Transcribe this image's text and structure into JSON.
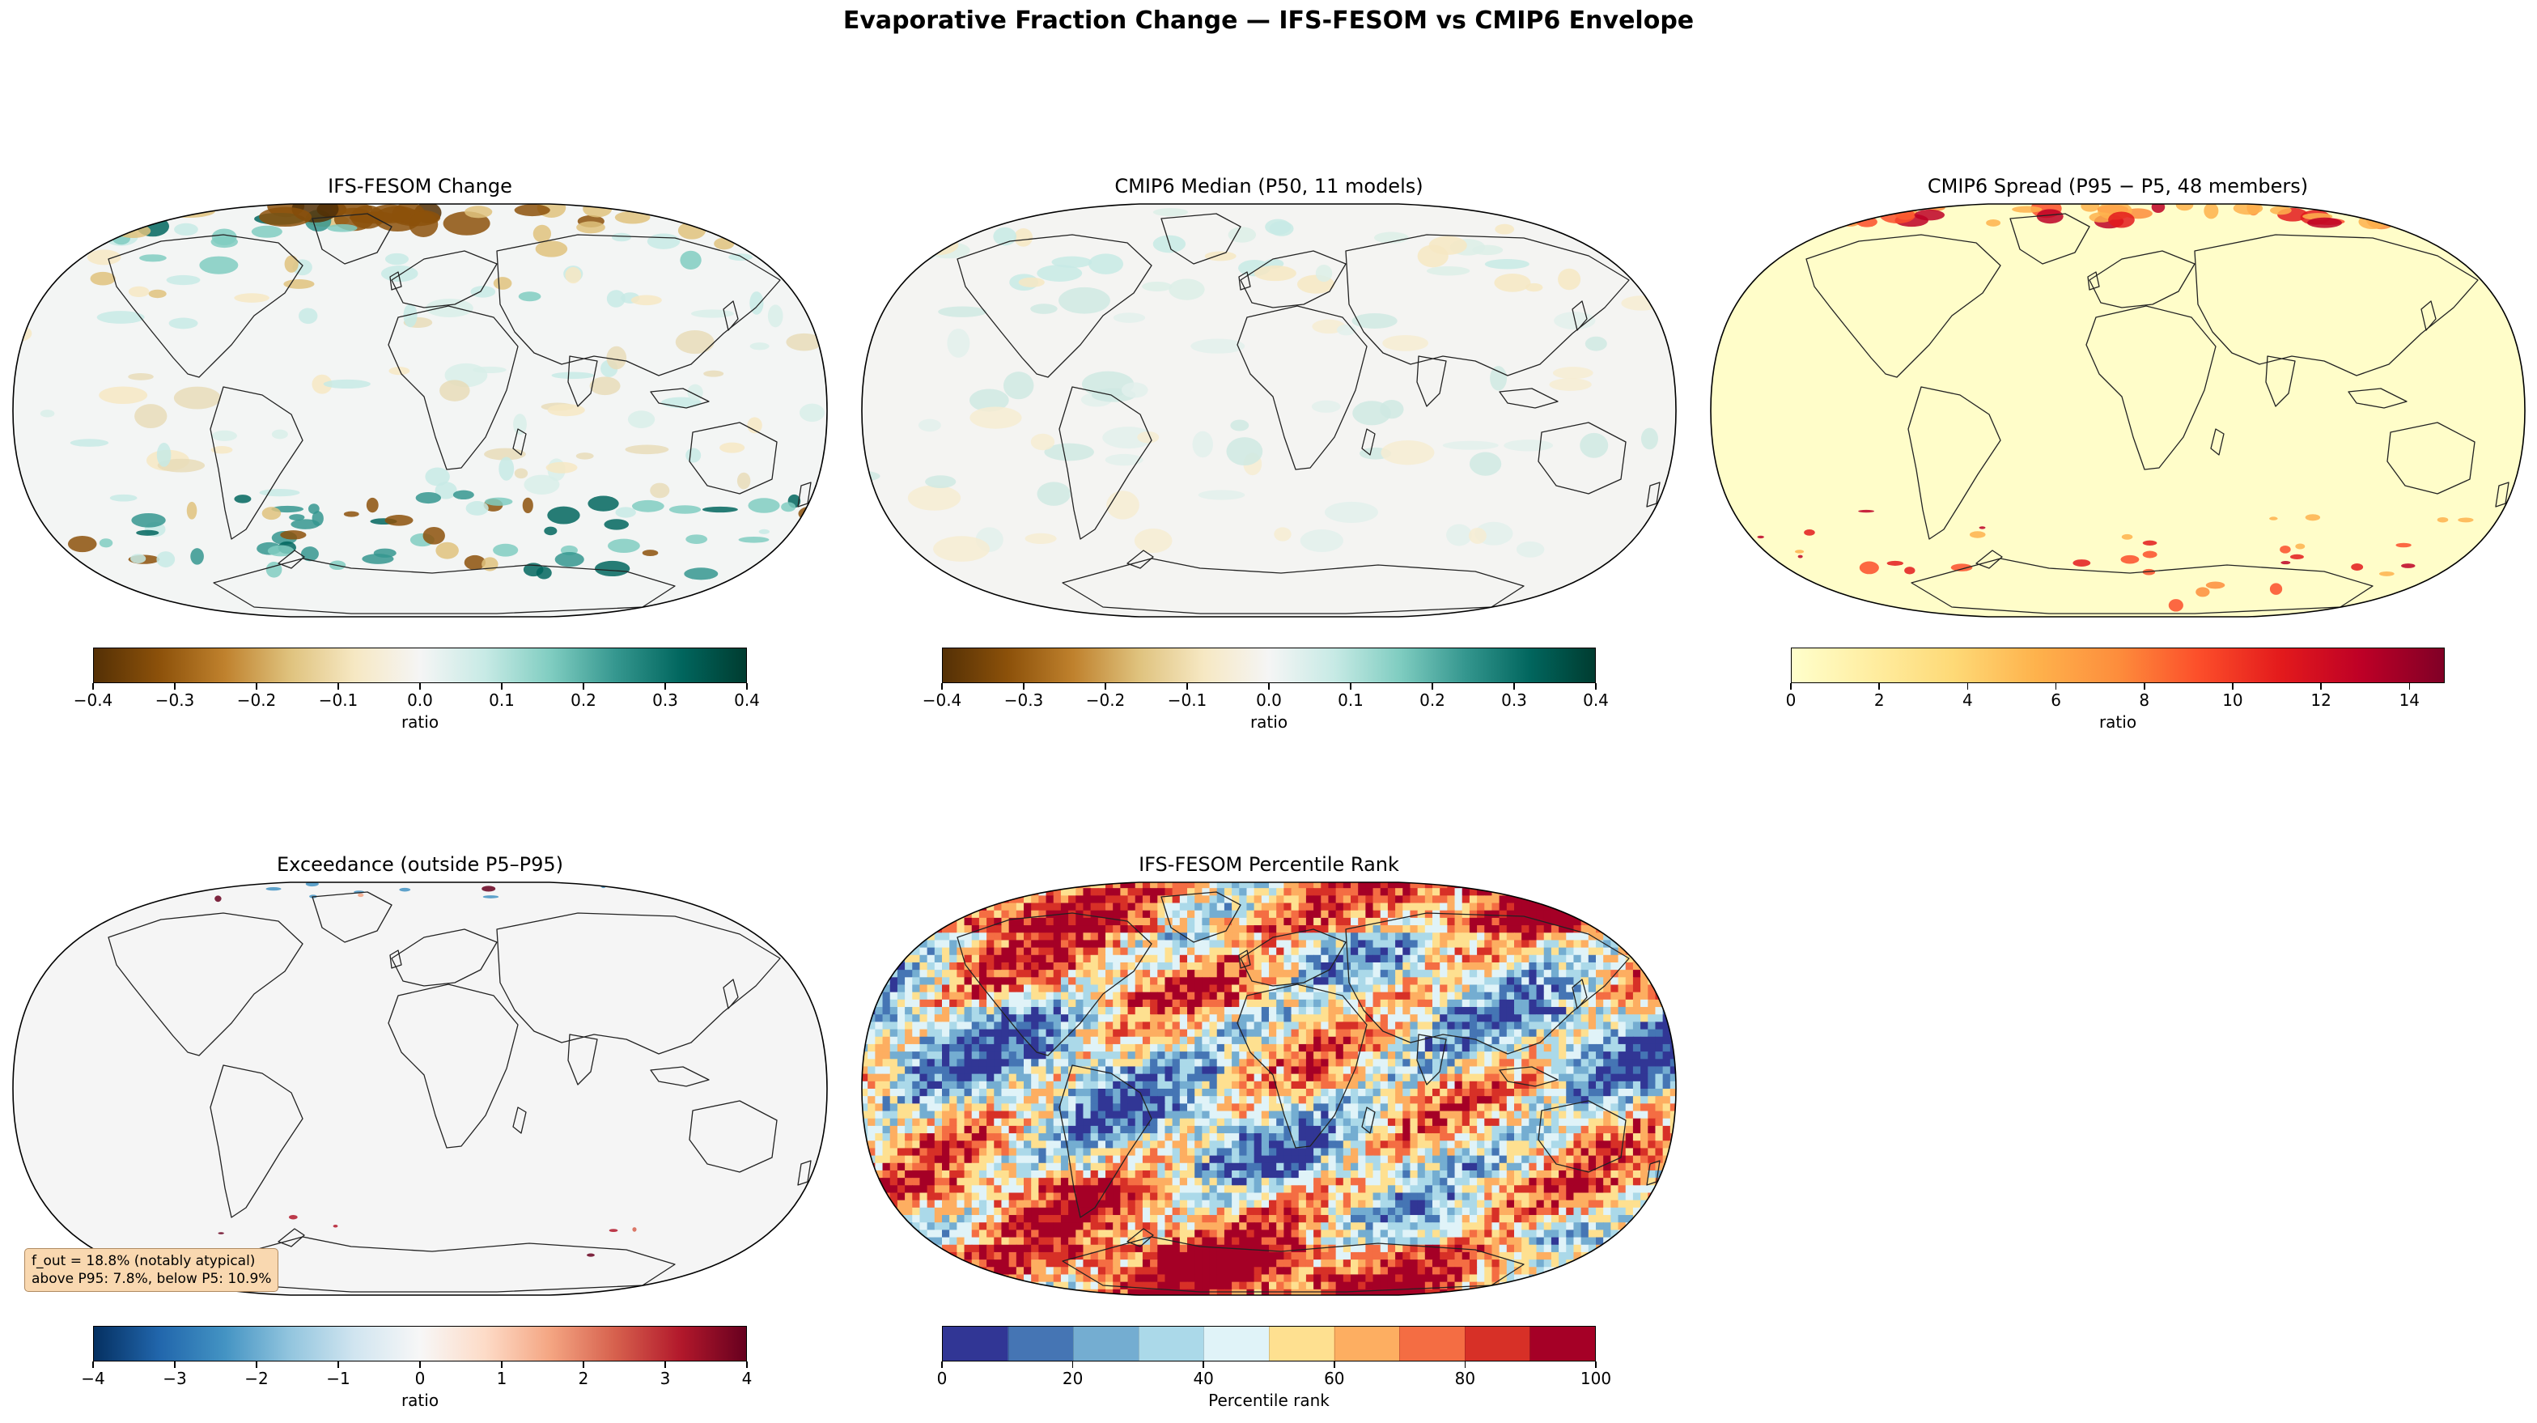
{
  "figure_title": "Evaporative Fraction Change — IFS-FESOM vs CMIP6 Envelope",
  "colors": {
    "brbg": [
      "#543005",
      "#8c510a",
      "#bf812d",
      "#dfc27d",
      "#f6e8c3",
      "#f5f5f5",
      "#c7eae5",
      "#80cdc1",
      "#35978f",
      "#01665e",
      "#003c30"
    ],
    "ylorrd": [
      "#ffffcc",
      "#ffeda0",
      "#fed976",
      "#feb24c",
      "#fd8d3c",
      "#fc4e2a",
      "#e31a1c",
      "#bd0026",
      "#800026"
    ],
    "rdbu_r": [
      "#053061",
      "#2166ac",
      "#4393c3",
      "#92c5de",
      "#d1e5f0",
      "#f7f7f7",
      "#fddbc7",
      "#f4a582",
      "#d6604d",
      "#b2182b",
      "#67001f"
    ],
    "rdylbu_r": [
      "#313695",
      "#4575b4",
      "#74add1",
      "#abd9e9",
      "#e0f3f8",
      "#fee090",
      "#fdae61",
      "#f46d43",
      "#d73027",
      "#a50026"
    ],
    "coastline": "#222222",
    "annotation_bg": "#f9d8b0"
  },
  "chart_data": [
    {
      "type": "heatmap",
      "title": "IFS-FESOM Change",
      "colormap": "brbg",
      "colorbar": {
        "range": [
          -0.4,
          0.4
        ],
        "ticks": [
          "−0.4",
          "−0.3",
          "−0.2",
          "−0.1",
          "0.0",
          "0.1",
          "0.2",
          "0.3",
          "0.4"
        ],
        "label": "ratio"
      }
    },
    {
      "type": "heatmap",
      "title": "CMIP6 Median (P50, 11 models)",
      "colormap": "brbg",
      "colorbar": {
        "range": [
          -0.4,
          0.4
        ],
        "ticks": [
          "−0.4",
          "−0.3",
          "−0.2",
          "−0.1",
          "0.0",
          "0.1",
          "0.2",
          "0.3",
          "0.4"
        ],
        "label": "ratio"
      }
    },
    {
      "type": "heatmap",
      "title": "CMIP6 Spread (P95 − P5, 48 members)",
      "colormap": "ylorrd",
      "colorbar": {
        "range": [
          0,
          14.8
        ],
        "ticks": [
          "0",
          "2",
          "4",
          "6",
          "8",
          "10",
          "12",
          "14"
        ],
        "label": "ratio"
      }
    },
    {
      "type": "heatmap",
      "title": "Exceedance (outside P5–P95)",
      "colormap": "rdbu_r",
      "colorbar": {
        "range": [
          -4,
          4
        ],
        "ticks": [
          "−4",
          "−3",
          "−2",
          "−1",
          "0",
          "1",
          "2",
          "3",
          "4"
        ],
        "label": "ratio"
      },
      "annotation": [
        "f_out = 18.8% (notably atypical)",
        "above P95: 7.8%, below P5: 10.9%"
      ]
    },
    {
      "type": "heatmap",
      "title": "IFS-FESOM Percentile Rank",
      "colormap": "rdylbu_r",
      "colorbar": {
        "range": [
          0,
          100
        ],
        "ticks": [
          "0",
          "20",
          "40",
          "60",
          "80",
          "100"
        ],
        "label": "Percentile rank"
      }
    }
  ]
}
